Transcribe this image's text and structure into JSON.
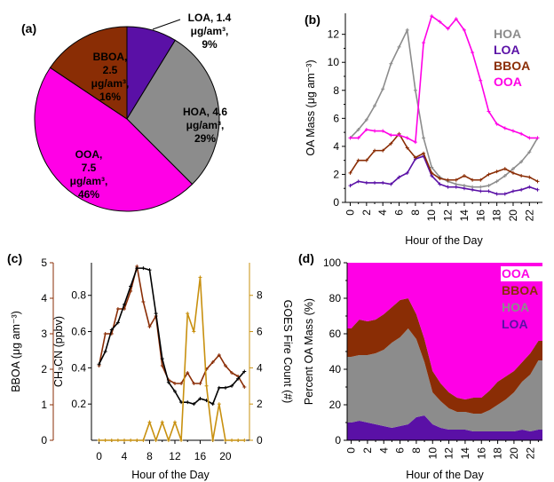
{
  "panels": {
    "a": {
      "letter": "(a)"
    },
    "b": {
      "letter": "(b)"
    },
    "c": {
      "letter": "(c)"
    },
    "d": {
      "letter": "(d)"
    }
  },
  "colors": {
    "HOA": "#8c8c8c",
    "LOA": "#5a10a6",
    "BBOA": "#8a2d05",
    "OOA": "#ff00e6",
    "fire": "#c8900f",
    "ch3cn": "#000000"
  },
  "chart_data": [
    {
      "panel": "a",
      "type": "pie",
      "slices": [
        {
          "name": "LOA",
          "value": 1.4,
          "unit": "μg/am³",
          "percent": "9%",
          "label_lines": [
            "LOA, 1.4",
            "μg/am³,",
            "9%"
          ]
        },
        {
          "name": "HOA",
          "value": 4.6,
          "unit": "μg/am³",
          "percent": "29%",
          "label_lines": [
            "HOA, 4.6",
            "μg/am³,",
            "29%"
          ]
        },
        {
          "name": "OOA",
          "value": 7.5,
          "unit": "μg/am³",
          "percent": "46%",
          "label_lines": [
            "OOA,",
            "7.5",
            "μg/am³,",
            "46%"
          ]
        },
        {
          "name": "BBOA",
          "value": 2.5,
          "unit": "μg/am³",
          "percent": "16%",
          "label_lines": [
            "BBOA,",
            "2.5",
            "μg/am³,",
            "16%"
          ]
        }
      ]
    },
    {
      "panel": "b",
      "type": "line",
      "xlabel": "Hour of the Day",
      "ylabel": "OA Mass (μg am⁻³)",
      "x": [
        0,
        1,
        2,
        3,
        4,
        5,
        6,
        7,
        8,
        9,
        10,
        11,
        12,
        13,
        14,
        15,
        16,
        17,
        18,
        19,
        20,
        21,
        22,
        23
      ],
      "xticks": [
        0,
        2,
        4,
        6,
        8,
        10,
        12,
        14,
        16,
        18,
        20,
        22
      ],
      "yticks": [
        0,
        2,
        4,
        6,
        8,
        10,
        12
      ],
      "ylim": [
        0,
        13.5
      ],
      "legend_position": "top-right",
      "series": [
        {
          "name": "HOA",
          "values": [
            4.6,
            5.2,
            5.9,
            6.9,
            8.1,
            9.9,
            11.1,
            12.3,
            8.0,
            4.6,
            2.5,
            1.8,
            1.5,
            1.3,
            1.2,
            1.1,
            1.1,
            1.2,
            1.5,
            1.9,
            2.4,
            2.9,
            3.6,
            4.6
          ]
        },
        {
          "name": "LOA",
          "values": [
            1.2,
            1.5,
            1.4,
            1.4,
            1.4,
            1.3,
            1.8,
            2.1,
            3.1,
            3.3,
            1.9,
            1.3,
            1.1,
            1.1,
            1.0,
            0.9,
            0.8,
            0.8,
            0.6,
            0.6,
            0.8,
            0.9,
            1.1,
            0.9
          ]
        },
        {
          "name": "BBOA",
          "values": [
            2.1,
            3.0,
            3.0,
            3.7,
            3.7,
            4.2,
            4.9,
            3.9,
            3.2,
            3.5,
            2.1,
            1.7,
            1.6,
            1.6,
            1.9,
            1.6,
            1.6,
            2.0,
            2.2,
            2.4,
            2.1,
            1.9,
            1.8,
            1.5
          ]
        },
        {
          "name": "OOA",
          "values": [
            4.6,
            4.6,
            5.2,
            5.1,
            5.1,
            4.8,
            4.8,
            4.6,
            4.3,
            11.4,
            13.3,
            12.9,
            12.4,
            13.1,
            12.3,
            10.7,
            8.7,
            6.5,
            5.6,
            5.3,
            5.1,
            4.9,
            4.6,
            4.6
          ]
        }
      ]
    },
    {
      "panel": "c",
      "type": "line",
      "xlabel": "Hour of the Day",
      "ylabel_left": "BBOA (μg am⁻³)",
      "ylabel_mid": "CH₃CN (ppbv)",
      "ylabel_right": "GOES Fire Count (#)",
      "x": [
        0,
        1,
        2,
        3,
        4,
        5,
        6,
        7,
        8,
        9,
        10,
        11,
        12,
        13,
        14,
        15,
        16,
        17,
        18,
        19,
        20,
        21,
        22,
        23
      ],
      "xticks": [
        0,
        4,
        8,
        12,
        16,
        20
      ],
      "ylim_left": [
        0,
        5
      ],
      "yticks_left": [
        0,
        1,
        2,
        3,
        4,
        5
      ],
      "ylim_mid": [
        0,
        0.98
      ],
      "yticks_mid": [
        0.2,
        0.4,
        0.6,
        0.8
      ],
      "ylim_right": [
        0,
        9.8
      ],
      "yticks_right": [
        0,
        2,
        4,
        6,
        8
      ],
      "series": [
        {
          "name": "BBOA",
          "axis": "left",
          "values": [
            2.1,
            3.0,
            3.0,
            3.7,
            3.7,
            4.2,
            4.9,
            3.9,
            3.2,
            3.5,
            2.1,
            1.7,
            1.6,
            1.6,
            1.9,
            1.6,
            1.6,
            2.0,
            2.2,
            2.4,
            2.1,
            1.9,
            1.8,
            1.5
          ]
        },
        {
          "name": "CH₃CN",
          "axis": "mid",
          "values": [
            0.42,
            0.49,
            0.61,
            0.65,
            0.75,
            0.85,
            0.95,
            0.95,
            0.94,
            0.7,
            0.45,
            0.32,
            0.27,
            0.21,
            0.21,
            0.2,
            0.23,
            0.22,
            0.2,
            0.29,
            0.29,
            0.3,
            0.34,
            0.38
          ]
        },
        {
          "name": "GOES Fire Count",
          "axis": "right",
          "values": [
            0,
            0,
            0,
            0,
            0,
            0,
            0,
            0,
            1,
            0,
            1,
            0,
            1,
            0,
            7,
            6,
            9,
            3,
            0,
            2,
            0,
            0,
            0,
            0
          ]
        }
      ]
    },
    {
      "panel": "d",
      "type": "area",
      "stacked": true,
      "xlabel": "Hour of the Day",
      "ylabel": "Percent OA Mass (%)",
      "x": [
        0,
        1,
        2,
        3,
        4,
        5,
        6,
        7,
        8,
        9,
        10,
        11,
        12,
        13,
        14,
        15,
        16,
        17,
        18,
        19,
        20,
        21,
        22,
        23
      ],
      "xticks": [
        0,
        2,
        4,
        6,
        8,
        10,
        12,
        14,
        16,
        18,
        20,
        22
      ],
      "yticks": [
        0,
        20,
        40,
        60,
        80,
        100
      ],
      "ylim": [
        0,
        100
      ],
      "legend_position": "top-right",
      "series": [
        {
          "name": "LOA",
          "values": [
            10,
            11,
            10,
            9,
            8,
            7,
            8,
            9,
            13,
            14,
            9,
            7,
            6,
            6,
            6,
            5,
            5,
            5,
            5,
            5,
            5,
            6,
            5,
            6
          ]
        },
        {
          "name": "HOA",
          "values": [
            37,
            37,
            38,
            40,
            43,
            48,
            50,
            54,
            44,
            30,
            18,
            15,
            12,
            10,
            10,
            10,
            10,
            12,
            15,
            18,
            22,
            27,
            32,
            39
          ]
        },
        {
          "name": "BBOA",
          "values": [
            16,
            20,
            19,
            19,
            20,
            20,
            21,
            17,
            14,
            13,
            12,
            10,
            9,
            8,
            7,
            9,
            9,
            11,
            13,
            13,
            12,
            11,
            12,
            11
          ]
        },
        {
          "name": "OOA",
          "values": [
            37,
            32,
            33,
            32,
            29,
            25,
            21,
            20,
            29,
            43,
            61,
            68,
            73,
            76,
            77,
            76,
            76,
            72,
            67,
            64,
            61,
            56,
            51,
            44
          ]
        }
      ],
      "legend_order": [
        "OOA",
        "BBOA",
        "HOA",
        "LOA"
      ]
    }
  ]
}
